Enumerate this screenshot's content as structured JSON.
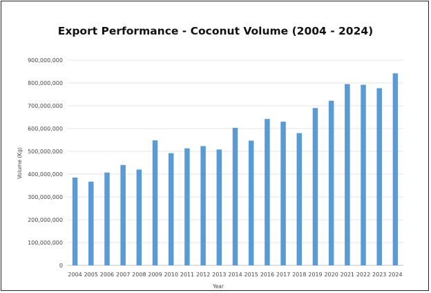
{
  "chart_data": {
    "type": "bar",
    "title": "Export Performance - Coconut Volume (2004 - 2024)",
    "xlabel": "Year",
    "ylabel": "Volume (Kg)",
    "ylim": [
      0,
      900000000
    ],
    "yticks": [
      0,
      100000000,
      200000000,
      300000000,
      400000000,
      500000000,
      600000000,
      700000000,
      800000000,
      900000000
    ],
    "ytick_labels": [
      "0",
      "100,000,000",
      "200,000,000",
      "300,000,000",
      "400,000,000",
      "500,000,000",
      "600,000,000",
      "700,000,000",
      "800,000,000",
      "900,000,000"
    ],
    "categories": [
      "2004",
      "2005",
      "2006",
      "2007",
      "2008",
      "2009",
      "2010",
      "2011",
      "2012",
      "2013",
      "2014",
      "2015",
      "2016",
      "2017",
      "2018",
      "2019",
      "2020",
      "2021",
      "2022",
      "2023",
      "2024"
    ],
    "values": [
      385000000,
      367000000,
      407000000,
      440000000,
      420000000,
      548000000,
      492000000,
      513000000,
      523000000,
      508000000,
      603000000,
      547000000,
      642000000,
      630000000,
      580000000,
      690000000,
      722000000,
      795000000,
      792000000,
      777000000,
      842000000
    ],
    "bar_color": "#5b9bd5",
    "grid": true,
    "legend": "none"
  }
}
